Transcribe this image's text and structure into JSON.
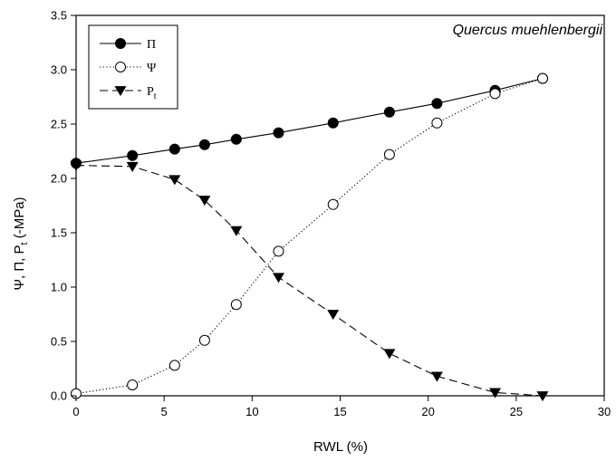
{
  "chart_data": {
    "type": "line",
    "xlabel": "RWL (%)",
    "ylabel": "Ψ, Π, P_t (-MPa)",
    "xlim": [
      0,
      30
    ],
    "ylim": [
      0,
      3.5
    ],
    "xticks": [
      0,
      5,
      10,
      15,
      20,
      25,
      30
    ],
    "yticks": [
      0.0,
      0.5,
      1.0,
      1.5,
      2.0,
      2.5,
      3.0,
      3.5
    ],
    "yticklabels": [
      "0.0",
      "0.5",
      "1.0",
      "1.5",
      "2.0",
      "2.5",
      "3.0",
      "3.5"
    ],
    "grid": false,
    "annotation": "Quercus muehlenbergii",
    "legend": {
      "placement": "top-left",
      "entries": [
        {
          "label": "Π",
          "sub": ""
        },
        {
          "label": "Ψ",
          "sub": ""
        },
        {
          "label": "P",
          "sub": "t"
        }
      ]
    },
    "series": [
      {
        "name": "Π",
        "marker": "filled-circle",
        "line": "solid",
        "x": [
          0,
          3.2,
          5.6,
          7.3,
          9.1,
          11.5,
          14.6,
          17.8,
          20.5,
          23.8,
          26.5
        ],
        "y": [
          2.14,
          2.21,
          2.27,
          2.31,
          2.36,
          2.42,
          2.51,
          2.61,
          2.69,
          2.81,
          2.92
        ]
      },
      {
        "name": "Ψ",
        "marker": "open-circle",
        "line": "dotted",
        "x": [
          0,
          3.2,
          5.6,
          7.3,
          9.1,
          11.5,
          14.6,
          17.8,
          20.5,
          23.8,
          26.5
        ],
        "y": [
          0.02,
          0.1,
          0.28,
          0.51,
          0.84,
          1.33,
          1.76,
          2.22,
          2.51,
          2.78,
          2.92
        ]
      },
      {
        "name": "P_t",
        "marker": "filled-triangle-down",
        "line": "dashed",
        "x": [
          0,
          3.2,
          5.6,
          7.3,
          9.1,
          11.5,
          14.6,
          17.8,
          20.5,
          23.8,
          26.5
        ],
        "y": [
          2.12,
          2.11,
          1.99,
          1.8,
          1.52,
          1.09,
          0.75,
          0.39,
          0.18,
          0.03,
          0.0
        ]
      }
    ]
  }
}
